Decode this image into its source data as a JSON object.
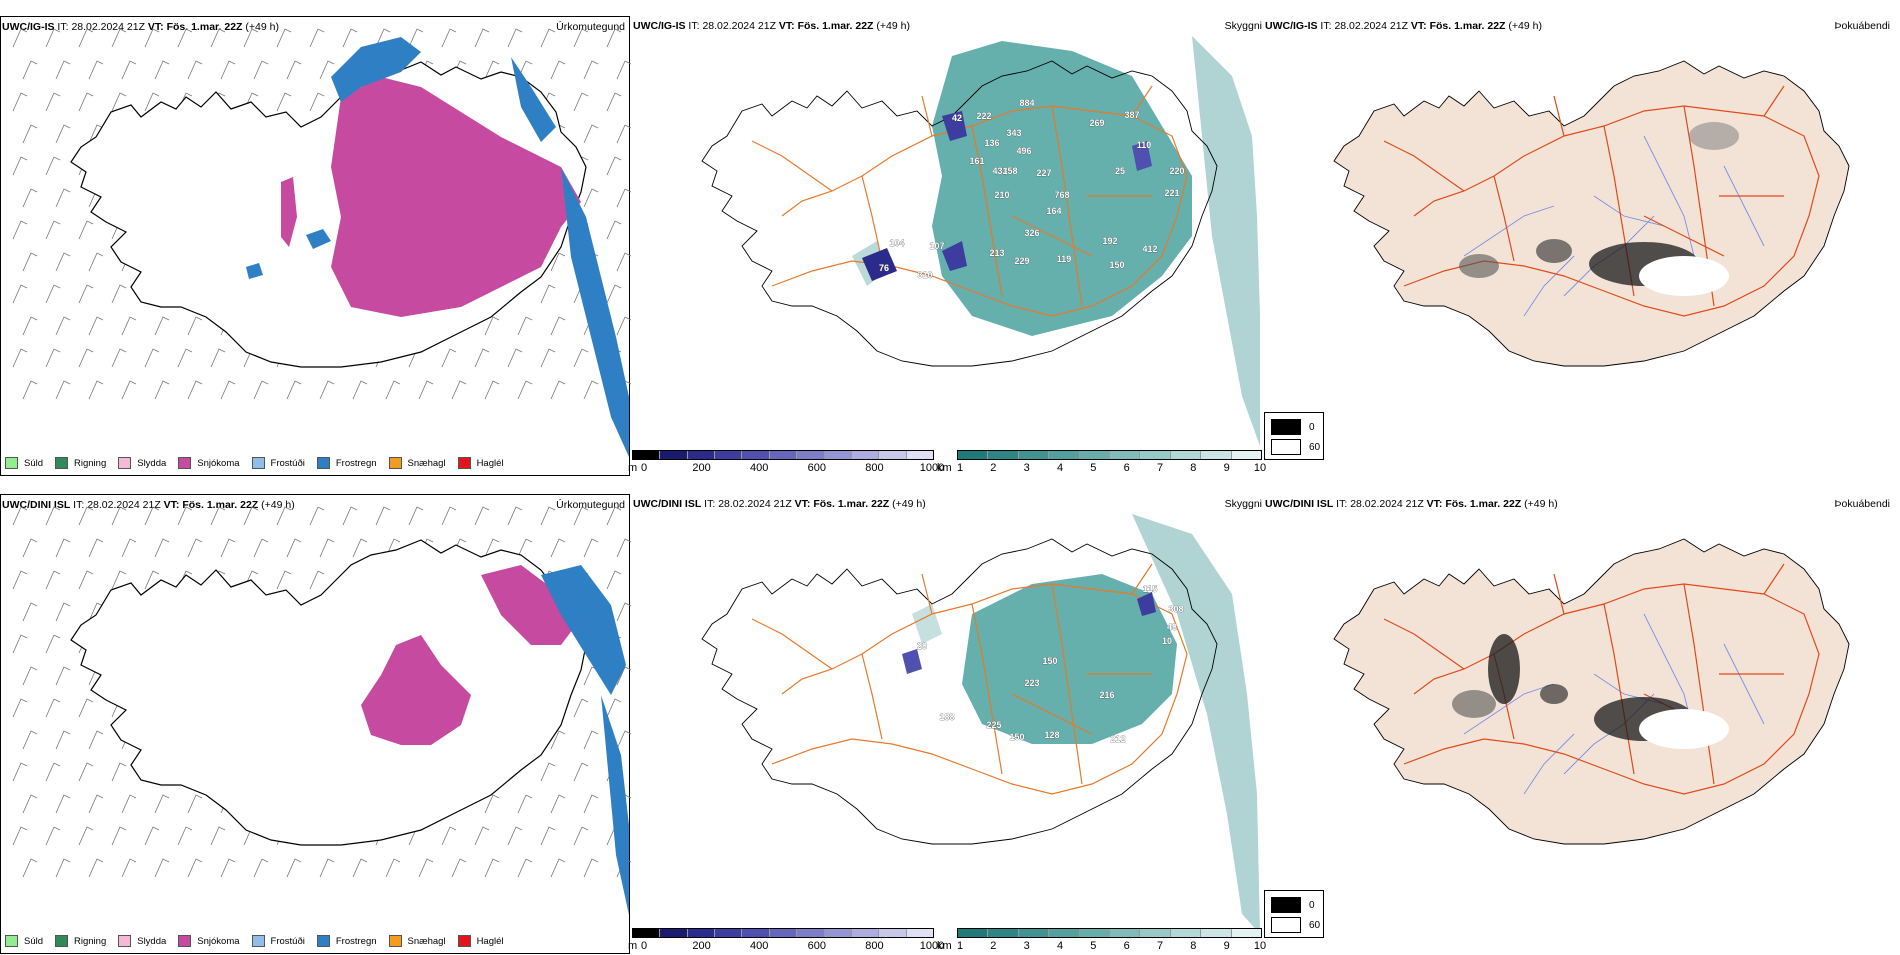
{
  "header": {
    "model_top": "UWC/IG-IS",
    "model_bottom": "UWC/DINI ISL",
    "it_label": "IT:",
    "it_value": "28.02.2024 21Z",
    "vt_label": "VT:",
    "vt_value": "Fös. 1.mar. 22Z",
    "lead": "(+49 h)"
  },
  "titles": {
    "precip": "Úrkomutegund",
    "cloud": "Skyggni",
    "fog": "Þokuábendi"
  },
  "precip_legend": [
    {
      "label": "Súld",
      "color": "#90ee90"
    },
    {
      "label": "Rigning",
      "color": "#2e8b57"
    },
    {
      "label": "Slydda",
      "color": "#f5b8d6"
    },
    {
      "label": "Snjókoma",
      "color": "#c64ba0"
    },
    {
      "label": "Frostúði",
      "color": "#8fbfe8"
    },
    {
      "label": "Frostregn",
      "color": "#2f7fc4"
    },
    {
      "label": "Snæhagl",
      "color": "#f39c1f"
    },
    {
      "label": "Haglél",
      "color": "#e4141b"
    }
  ],
  "cloud_base_bar": {
    "unit": "m",
    "ticks": [
      "0",
      "200",
      "400",
      "600",
      "800",
      "1000"
    ],
    "colors": [
      "#000000",
      "#1a1a6e",
      "#2b2b8c",
      "#3d3da0",
      "#5050b0",
      "#6666bd",
      "#7d7dc8",
      "#9595d4",
      "#aeaede",
      "#c7c7ea",
      "#e0e0f4"
    ]
  },
  "visibility_bar": {
    "unit": "km",
    "ticks": [
      "1",
      "2",
      "3",
      "4",
      "5",
      "6",
      "7",
      "8",
      "9",
      "10"
    ],
    "colors": [
      "#1f7a78",
      "#2e8684",
      "#409391",
      "#54a09e",
      "#69adab",
      "#80bbb9",
      "#98c9c7",
      "#b1d7d6",
      "#cae5e4",
      "#e4f2f1"
    ]
  },
  "fog_legend": [
    {
      "value": "0",
      "color": "#000000"
    },
    {
      "value": "60",
      "color": "#ffffff"
    }
  ],
  "cloud_labels_top": [
    "42",
    "222",
    "884",
    "269",
    "387",
    "136",
    "343",
    "496",
    "161",
    "433",
    "158",
    "110",
    "220",
    "227",
    "210",
    "768",
    "164",
    "25",
    "221",
    "326",
    "104",
    "107",
    "192",
    "213",
    "229",
    "119",
    "412",
    "150",
    "76",
    "310"
  ],
  "cloud_labels_bottom": [
    "115",
    "308",
    "48",
    "10",
    "28",
    "150",
    "223",
    "216",
    "188",
    "225",
    "150",
    "128",
    "212"
  ],
  "colors": {
    "snow": "#c64ba0",
    "freezing_rain": "#2f7fc4",
    "land_fog": "#f3e3d6",
    "roads": "#e8792a",
    "rivers": "#7a8ee6",
    "coast": "#000000"
  }
}
